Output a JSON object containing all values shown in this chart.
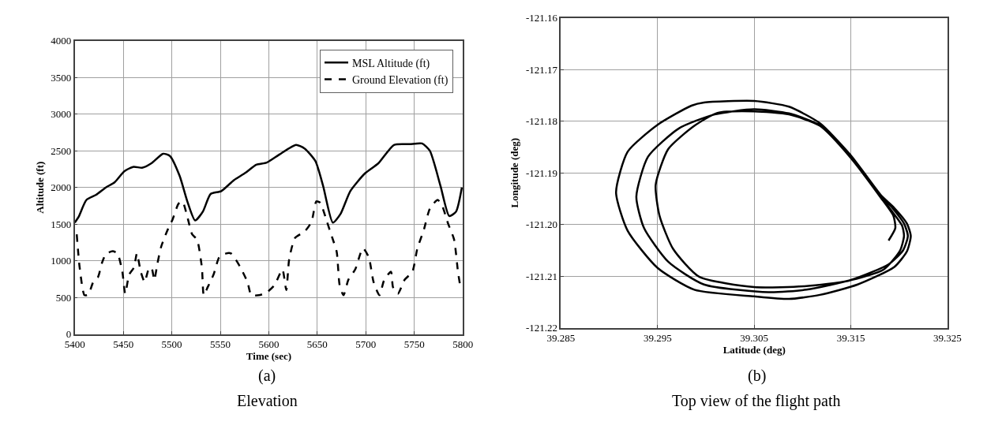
{
  "chart_data": [
    {
      "type": "line",
      "xlabel": "Time (sec)",
      "ylabel": "Altitude (ft)",
      "xlim": [
        5400,
        5800
      ],
      "xticks": [
        5400,
        5450,
        5500,
        5550,
        5600,
        5650,
        5700,
        5750,
        5800
      ],
      "ylim": [
        0,
        4000
      ],
      "yticks": [
        0,
        500,
        1000,
        1500,
        2000,
        2500,
        3000,
        3500,
        4000
      ],
      "grid": true,
      "legend": "top right",
      "annotations": [
        "(a)",
        "Elevation"
      ],
      "series": [
        {
          "name": "MSL Altitude (ft)",
          "color": "#000000",
          "line_style": "solid",
          "x": [
            5400,
            5404,
            5412,
            5422,
            5432,
            5441,
            5451,
            5460,
            5470,
            5479,
            5491,
            5498,
            5508,
            5516,
            5524,
            5532,
            5540,
            5551,
            5564,
            5576,
            5587,
            5598,
            5611,
            5628,
            5637,
            5648,
            5656,
            5666,
            5674,
            5684,
            5699,
            5713,
            5729,
            5745,
            5758,
            5766,
            5777,
            5786,
            5793,
            5799
          ],
          "values": [
            1520,
            1600,
            1830,
            1900,
            2000,
            2070,
            2220,
            2280,
            2270,
            2330,
            2460,
            2430,
            2160,
            1810,
            1550,
            1670,
            1910,
            1950,
            2100,
            2200,
            2310,
            2340,
            2450,
            2580,
            2530,
            2360,
            2020,
            1520,
            1640,
            1950,
            2190,
            2330,
            2580,
            2590,
            2600,
            2500,
            2020,
            1610,
            1670,
            2000
          ]
        },
        {
          "name": "Ground Elevation (ft)",
          "color": "#000000",
          "line_style": "dashed",
          "x": [
            5402,
            5405,
            5410,
            5414,
            5419,
            5424,
            5428,
            5432,
            5439,
            5444,
            5449,
            5452,
            5456,
            5461,
            5464,
            5468,
            5472,
            5476,
            5479,
            5482,
            5485,
            5489,
            5495,
            5501,
            5507,
            5511,
            5516,
            5521,
            5526,
            5531,
            5533,
            5537,
            5543,
            5549,
            5556,
            5561,
            5569,
            5578,
            5582,
            5590,
            5598,
            5606,
            5614,
            5618,
            5621,
            5627,
            5637,
            5644,
            5649,
            5653,
            5660,
            5665,
            5670,
            5673,
            5677,
            5682,
            5689,
            5697,
            5703,
            5708,
            5714,
            5719,
            5726,
            5728,
            5733,
            5740,
            5748,
            5753,
            5760,
            5766,
            5774,
            5779,
            5785,
            5791,
            5795,
            5798
          ],
          "values": [
            1360,
            910,
            530,
            540,
            710,
            780,
            970,
            1090,
            1130,
            1100,
            850,
            550,
            810,
            910,
            1100,
            850,
            710,
            880,
            910,
            740,
            950,
            1190,
            1400,
            1570,
            1780,
            1810,
            1600,
            1360,
            1290,
            910,
            530,
            640,
            810,
            1050,
            1100,
            1100,
            950,
            710,
            530,
            530,
            570,
            670,
            880,
            600,
            1020,
            1310,
            1400,
            1530,
            1810,
            1790,
            1530,
            1330,
            1120,
            670,
            530,
            740,
            880,
            1170,
            1050,
            710,
            530,
            740,
            850,
            640,
            550,
            740,
            850,
            1160,
            1430,
            1710,
            1830,
            1740,
            1500,
            1290,
            850,
            600
          ]
        }
      ]
    },
    {
      "type": "line",
      "xlabel": "Latitude (deg)",
      "ylabel": "Longitude (deg)",
      "xlim": [
        39.285,
        39.325
      ],
      "xticks": [
        39.285,
        39.295,
        39.305,
        39.315,
        39.325
      ],
      "ylim": [
        -121.22,
        -121.16
      ],
      "yticks": [
        -121.16,
        -121.17,
        -121.18,
        -121.19,
        {
          "value": -121.2,
          "label": "-121.20"
        },
        -121.21,
        -121.22
      ],
      "grid": true,
      "annotations": [
        "(b)",
        "Top view of the flight path"
      ],
      "series": [
        {
          "color": "#000000",
          "line_style": "solid",
          "x": [
            39.3118,
            39.3149,
            39.3181,
            39.3195,
            39.3208,
            39.3212,
            39.3208,
            39.3195,
            39.3157,
            39.3118,
            39.3086,
            39.305,
            39.2988,
            39.295,
            39.2919,
            39.2907,
            39.2919,
            39.295,
            39.2985,
            39.2998,
            39.305,
            39.3086,
            39.3118,
            39.3149,
            39.3181,
            39.3193,
            39.3205,
            39.3209,
            39.3204,
            39.3189,
            39.3152,
            39.3104,
            39.3065,
            39.2998,
            39.2961,
            39.2936,
            39.2928,
            39.294,
            39.2972,
            39.3009,
            39.305,
            39.3086,
            39.3118,
            39.3149,
            39.3181,
            39.3192,
            39.3203,
            39.3205,
            39.3201,
            39.3184,
            39.3147,
            39.3104,
            39.305,
            39.2993,
            39.2966,
            39.2952,
            39.2948,
            39.2961,
            39.2988,
            39.3012,
            39.305,
            39.3086,
            39.3118,
            39.3149,
            39.3181,
            39.3194,
            39.3196,
            39.3189
          ],
          "values": [
            -121.1804,
            -121.1864,
            -121.1943,
            -121.1968,
            -121.1998,
            -121.2022,
            -121.2052,
            -121.2082,
            -121.2116,
            -121.2136,
            -121.2144,
            -121.2139,
            -121.2126,
            -121.2084,
            -121.2012,
            -121.1938,
            -121.1859,
            -121.1807,
            -121.177,
            -121.1764,
            -121.1761,
            -121.1772,
            -121.1804,
            -121.1864,
            -121.1943,
            -121.1968,
            -121.1998,
            -121.2022,
            -121.205,
            -121.2077,
            -121.2106,
            -121.2126,
            -121.2131,
            -121.2116,
            -121.2072,
            -121.2007,
            -121.1946,
            -121.1869,
            -121.1814,
            -121.1787,
            -121.1777,
            -121.1785,
            -121.1808,
            -121.1866,
            -121.1946,
            -121.1973,
            -121.2002,
            -121.2022,
            -121.205,
            -121.2087,
            -121.2109,
            -121.2119,
            -121.2121,
            -121.2101,
            -121.2047,
            -121.1983,
            -121.1923,
            -121.1854,
            -121.1809,
            -121.1784,
            -121.1781,
            -121.1787,
            -121.1809,
            -121.1869,
            -121.1948,
            -121.1983,
            -121.2007,
            -121.2031
          ]
        }
      ]
    }
  ]
}
